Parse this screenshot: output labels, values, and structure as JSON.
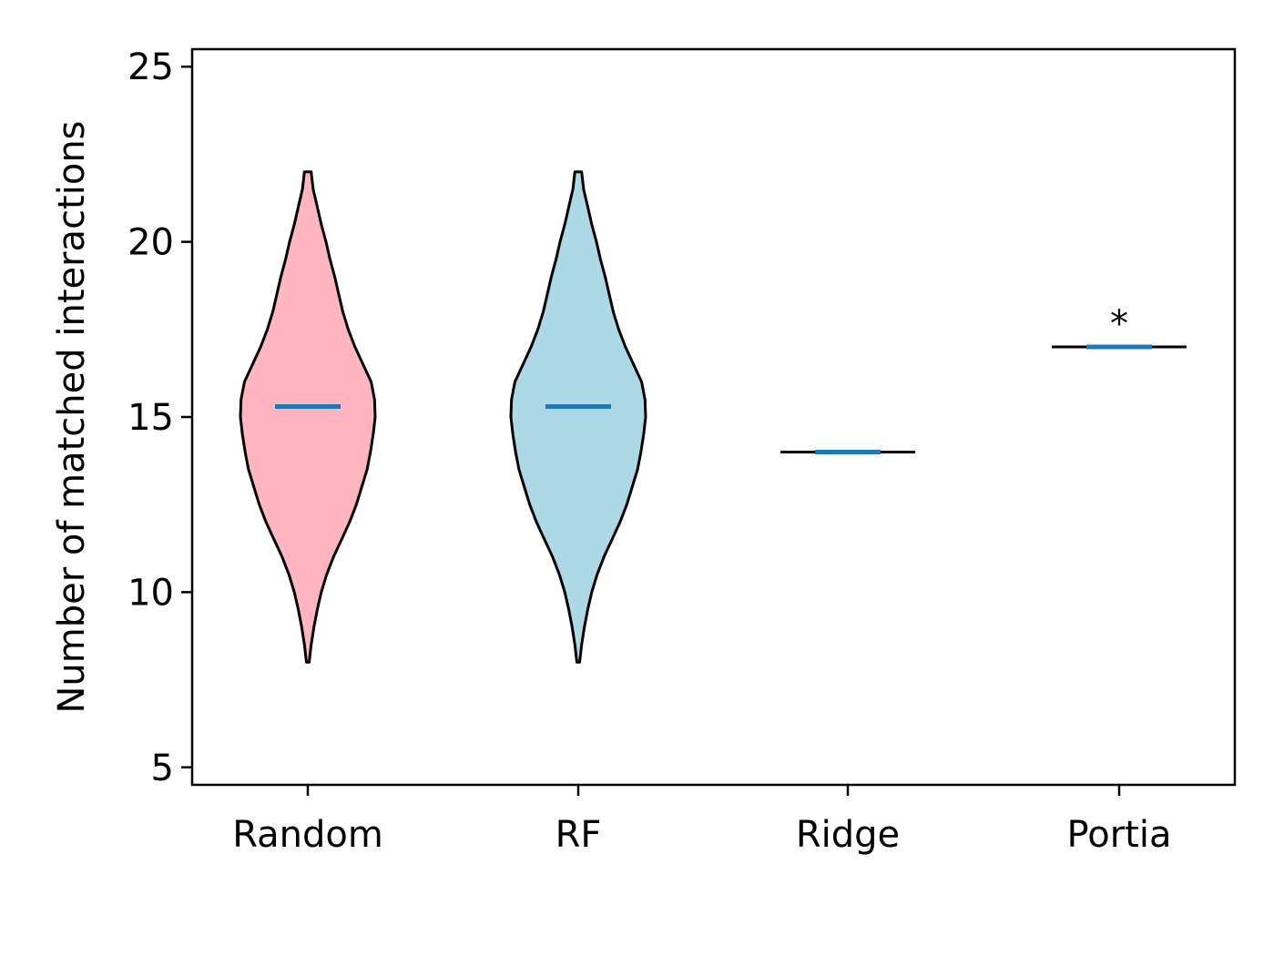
{
  "chart_data": {
    "type": "violin",
    "title": "",
    "xlabel": "",
    "ylabel": "Number of matched interactions",
    "ylim": [
      4.5,
      25.5
    ],
    "yticks": [
      5,
      10,
      15,
      20,
      25
    ],
    "categories": [
      "Random",
      "RF",
      "Ridge",
      "Portia"
    ],
    "grid": false,
    "median_color": "#1f77b4",
    "series": [
      {
        "category": "Random",
        "fill": "#ffb6c1",
        "min": 8,
        "max": 22,
        "median": 15.3,
        "profile": [
          [
            8.0,
            0.02
          ],
          [
            8.5,
            0.05
          ],
          [
            9.0,
            0.09
          ],
          [
            9.5,
            0.14
          ],
          [
            10.0,
            0.2
          ],
          [
            10.5,
            0.28
          ],
          [
            11.0,
            0.38
          ],
          [
            11.5,
            0.5
          ],
          [
            12.0,
            0.62
          ],
          [
            12.5,
            0.72
          ],
          [
            13.0,
            0.8
          ],
          [
            13.5,
            0.88
          ],
          [
            14.0,
            0.93
          ],
          [
            14.5,
            0.97
          ],
          [
            15.0,
            1.0
          ],
          [
            15.5,
            0.99
          ],
          [
            16.0,
            0.94
          ],
          [
            16.5,
            0.82
          ],
          [
            17.0,
            0.7
          ],
          [
            17.5,
            0.6
          ],
          [
            18.0,
            0.52
          ],
          [
            18.5,
            0.46
          ],
          [
            19.0,
            0.4
          ],
          [
            19.5,
            0.33
          ],
          [
            20.0,
            0.27
          ],
          [
            20.5,
            0.2
          ],
          [
            21.0,
            0.14
          ],
          [
            21.5,
            0.08
          ],
          [
            22.0,
            0.05
          ]
        ]
      },
      {
        "category": "RF",
        "fill": "#add8e6",
        "min": 8,
        "max": 22,
        "median": 15.3,
        "profile": [
          [
            8.0,
            0.02
          ],
          [
            8.5,
            0.05
          ],
          [
            9.0,
            0.09
          ],
          [
            9.5,
            0.14
          ],
          [
            10.0,
            0.2
          ],
          [
            10.5,
            0.28
          ],
          [
            11.0,
            0.38
          ],
          [
            11.5,
            0.5
          ],
          [
            12.0,
            0.62
          ],
          [
            12.5,
            0.72
          ],
          [
            13.0,
            0.8
          ],
          [
            13.5,
            0.88
          ],
          [
            14.0,
            0.93
          ],
          [
            14.5,
            0.97
          ],
          [
            15.0,
            1.0
          ],
          [
            15.5,
            0.99
          ],
          [
            16.0,
            0.94
          ],
          [
            16.5,
            0.82
          ],
          [
            17.0,
            0.7
          ],
          [
            17.5,
            0.6
          ],
          [
            18.0,
            0.52
          ],
          [
            18.5,
            0.46
          ],
          [
            19.0,
            0.4
          ],
          [
            19.5,
            0.33
          ],
          [
            20.0,
            0.27
          ],
          [
            20.5,
            0.2
          ],
          [
            21.0,
            0.14
          ],
          [
            21.5,
            0.08
          ],
          [
            22.0,
            0.05
          ]
        ]
      },
      {
        "category": "Ridge",
        "fill": "#ffffff",
        "min": 14,
        "max": 14,
        "median": 14,
        "profile": []
      },
      {
        "category": "Portia",
        "fill": "#ffffff",
        "min": 17,
        "max": 17,
        "median": 17,
        "profile": [],
        "annotation": "*"
      }
    ]
  }
}
